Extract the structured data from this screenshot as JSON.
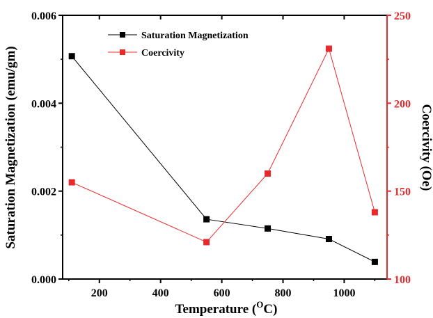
{
  "chart_data": {
    "type": "line",
    "xlabel": "Temperature (",
    "xlabel_sup": "O",
    "xlabel_tail": "C)",
    "ylabel_left": "Saturation Magnetization (emu/gm)",
    "ylabel_right": "Coercivity (Oe)",
    "xlim": [
      80,
      1140
    ],
    "ylim_left": [
      0,
      0.006
    ],
    "ylim_right": [
      100,
      250
    ],
    "xticks": [
      200,
      400,
      600,
      800,
      1000
    ],
    "xtick_labels": [
      "200",
      "400",
      "600",
      "800",
      "1000"
    ],
    "yticks_left": [
      0,
      0.002,
      0.004,
      0.006
    ],
    "ytick_labels_left": [
      "0.000",
      "0.002",
      "0.004",
      "0.006"
    ],
    "yticks_right": [
      100,
      150,
      200,
      250
    ],
    "ytick_labels_right": [
      "100",
      "150",
      "200",
      "250"
    ],
    "grid": false,
    "legend_position": "top-left",
    "series": [
      {
        "name": "Saturation Magnetization",
        "axis": "left",
        "color": "#000000",
        "marker": "square",
        "x": [
          110,
          550,
          750,
          950,
          1100
        ],
        "y": [
          0.00507,
          0.00136,
          0.00115,
          0.00091,
          0.00039
        ]
      },
      {
        "name": "Coercivity",
        "axis": "right",
        "color": "#e8292b",
        "marker": "square",
        "x": [
          110,
          550,
          750,
          950,
          1100
        ],
        "y": [
          155,
          121,
          160,
          231,
          138
        ]
      }
    ]
  }
}
